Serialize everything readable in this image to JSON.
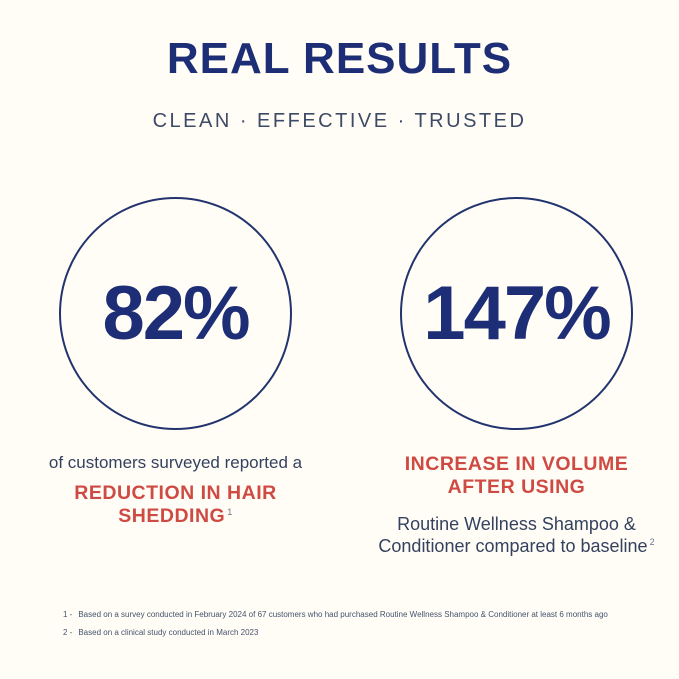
{
  "page": {
    "background": "#fffdf6"
  },
  "colors": {
    "navy": "#1d2e76",
    "slate_navy": "#3e4b66",
    "body_navy": "#35425f",
    "red": "#cf4a42",
    "footnote": "#44536e"
  },
  "header": {
    "title": "REAL RESULTS",
    "tagline": "CLEAN · EFFECTIVE · TRUSTED"
  },
  "stats": [
    {
      "value": "82%",
      "lead": "of customers surveyed reported a",
      "highlight": "REDUCTION IN HAIR SHEDDING",
      "highlight_footnote_ref": "1"
    },
    {
      "value": "147%",
      "highlight": "INCREASE IN VOLUME AFTER USING",
      "detail": "Routine Wellness Shampoo & Conditioner compared to baseline",
      "detail_footnote_ref": "2"
    }
  ],
  "footnotes": [
    {
      "marker": "1 -",
      "text": "Based on a survey conducted in February 2024 of 67 customers who had purchased Routine Wellness Shampoo & Conditioner at least 6 months ago"
    },
    {
      "marker": "2 -",
      "text": "Based on a clinical study conducted in March 2023"
    }
  ]
}
